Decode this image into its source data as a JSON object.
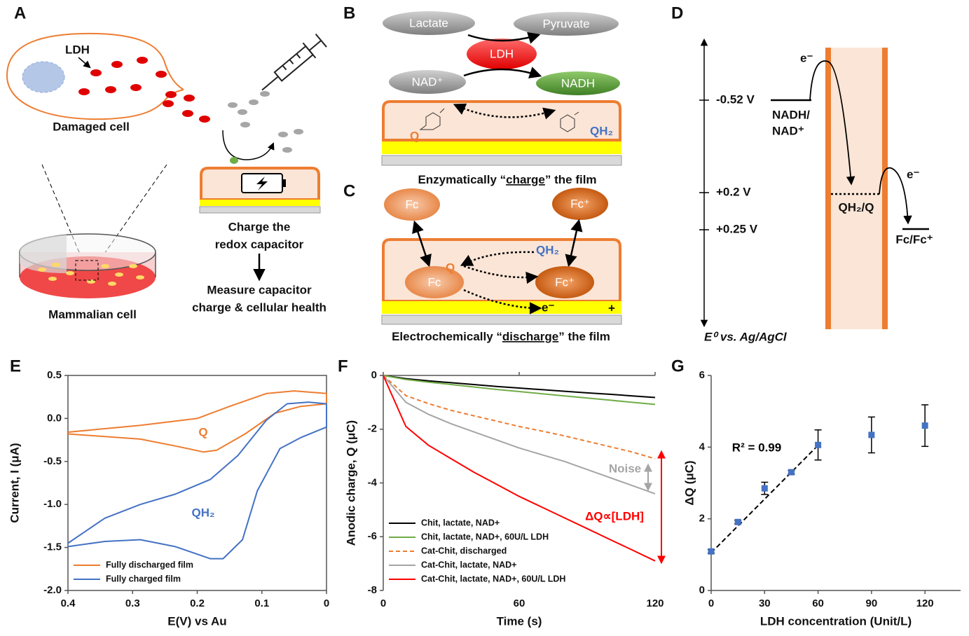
{
  "panels": {
    "A": {
      "label": "A",
      "ldh": "LDH",
      "damaged_cell": "Damaged cell",
      "mammalian_cell": "Mammalian cell",
      "charge": [
        "Charge the",
        "redox capacitor"
      ],
      "measure": [
        "Measure capacitor",
        "charge & cellular health"
      ]
    },
    "B": {
      "label": "B",
      "lactate": "Lactate",
      "pyruvate": "Pyruvate",
      "enzyme": "LDH",
      "nad": "NAD⁺",
      "nadh": "NADH",
      "q": "Q",
      "qh2": "QH₂",
      "caption": [
        "Enzymatically “",
        "charge",
        "” the film"
      ]
    },
    "C": {
      "label": "C",
      "fc_top": "Fc",
      "fc_plus_top": "Fc⁺",
      "fc": "Fc",
      "fc_plus": "Fc⁺",
      "q": "Q",
      "qh2": "QH₂",
      "electron": "e⁻",
      "plus": "+",
      "caption": [
        "Electrochemically “",
        "discharge",
        "” the film"
      ]
    },
    "D": {
      "label": "D",
      "levels": [
        "-0.52 V",
        "+0.2 V",
        "+0.25 V"
      ],
      "nadh": [
        "NADH/",
        "NAD⁺"
      ],
      "electron_1": "e⁻",
      "electron_2": "e⁻",
      "qh2_q": "QH₂/Q",
      "fc_fc": "Fc/Fc⁺",
      "axis": "E⁰ vs. Ag/AgCl"
    }
  },
  "chart_data": [
    {
      "label": "E",
      "type": "line",
      "xlabel": "E(V) vs Au",
      "ylabel": "Current, I (μA)",
      "xlim": [
        0.4,
        0
      ],
      "ylim": [
        -2,
        0.5
      ],
      "xticks": [
        0.4,
        0.3,
        0.2,
        0.1,
        0
      ],
      "yticks": [
        0.5,
        {
          "value": 0,
          "label": "0.0"
        },
        -0.5,
        {
          "value": -1,
          "label": "-1.0"
        },
        -1.5,
        {
          "value": -2,
          "label": "-2.0"
        }
      ],
      "legend": "lower left",
      "annotations": [
        "Q",
        "QH₂"
      ],
      "series": [
        {
          "name": "Fully discharged film",
          "color": "#ed7d31",
          "x": [
            0.4,
            0.288,
            0.2,
            0.15,
            0.093,
            0.05,
            0,
            0,
            0.04,
            0.08,
            0.126,
            0.17,
            0.19,
            0.234,
            0.288,
            0.4
          ],
          "values": [
            -0.16,
            -0.08,
            0,
            0.14,
            0.29,
            0.32,
            0.29,
            0.17,
            0.14,
            0.06,
            -0.18,
            -0.37,
            -0.39,
            -0.32,
            -0.24,
            -0.18
          ]
        },
        {
          "name": "Fully charged film",
          "color": "#4472c4",
          "x": [
            0.4,
            0.343,
            0.288,
            0.234,
            0.18,
            0.16,
            0.13,
            0.107,
            0.072,
            0.039,
            0,
            0,
            0.028,
            0.061,
            0.093,
            0.137,
            0.18,
            0.234,
            0.288,
            0.343,
            0.4
          ],
          "values": [
            -1.49,
            -1.43,
            -1.41,
            -1.49,
            -1.63,
            -1.63,
            -1.41,
            -0.84,
            -0.35,
            -0.22,
            -0.1,
            0.17,
            0.19,
            0.17,
            -0.02,
            -0.43,
            -0.71,
            -0.88,
            -1,
            -1.16,
            -1.45
          ]
        }
      ]
    },
    {
      "label": "F",
      "type": "line",
      "xlabel": "Time (s)",
      "ylabel": "Anodic charge, Q (μC)",
      "xlim": [
        0,
        120
      ],
      "ylim": [
        -8,
        0
      ],
      "xticks": [
        0,
        60,
        120
      ],
      "yticks": [
        0,
        -2,
        -4,
        -6,
        -8
      ],
      "legend": "lower left",
      "annotations": [
        "Noise",
        "ΔQ∝[LDH]"
      ],
      "x": [
        0,
        10,
        20,
        30,
        40,
        50,
        60,
        70,
        80,
        90,
        100,
        110,
        120
      ],
      "series": [
        {
          "name": "Chit, lactate, NAD+",
          "color": "#000000",
          "values": [
            0,
            -0.12,
            -0.2,
            -0.27,
            -0.34,
            -0.41,
            -0.47,
            -0.53,
            -0.59,
            -0.65,
            -0.7,
            -0.76,
            -0.82
          ]
        },
        {
          "name": "Chit, lactate, NAD+, 60U/L LDH",
          "color": "#70ad47",
          "values": [
            0,
            -0.15,
            -0.25,
            -0.34,
            -0.43,
            -0.52,
            -0.6,
            -0.68,
            -0.76,
            -0.84,
            -0.92,
            -1,
            -1.08
          ]
        },
        {
          "name": "Cat-Chit, discharged",
          "color": "#ed7d31",
          "dashed": true,
          "values": [
            0,
            -0.75,
            -1.05,
            -1.3,
            -1.5,
            -1.7,
            -1.9,
            -2.07,
            -2.25,
            -2.45,
            -2.65,
            -2.85,
            -3.1
          ]
        },
        {
          "name": "Cat-Chit, lactate, NAD+",
          "color": "#a5a5a5",
          "values": [
            0,
            -1,
            -1.45,
            -1.8,
            -2.1,
            -2.4,
            -2.7,
            -2.95,
            -3.2,
            -3.5,
            -3.8,
            -4.1,
            -4.4
          ]
        },
        {
          "name": "Cat-Chit, lactate, NAD+, 60U/L LDH",
          "color": "#ff0000",
          "values": [
            0,
            -1.9,
            -2.6,
            -3.1,
            -3.6,
            -4.05,
            -4.5,
            -4.9,
            -5.3,
            -5.7,
            -6.1,
            -6.5,
            -6.9
          ]
        }
      ]
    },
    {
      "label": "G",
      "type": "scatter",
      "xlabel": "LDH concentration (Unit/L)",
      "ylabel": "ΔQ (μC)",
      "xlim": [
        0,
        140
      ],
      "ylim": [
        0,
        6
      ],
      "xticks": [
        0,
        30,
        60,
        90,
        120
      ],
      "yticks": [
        0,
        2,
        4,
        6
      ],
      "color": "#4472c4",
      "annotations": [
        "R² = 0.99"
      ],
      "x": [
        0,
        15,
        30,
        45,
        60,
        90,
        120
      ],
      "values": [
        1.09,
        1.91,
        2.85,
        3.3,
        4.06,
        4.34,
        4.6
      ],
      "errors": [
        0.05,
        0.05,
        0.17,
        0.05,
        0.42,
        0.5,
        0.58
      ],
      "trendline": {
        "x": [
          0,
          60
        ],
        "values": [
          1.05,
          4.05
        ]
      }
    }
  ]
}
